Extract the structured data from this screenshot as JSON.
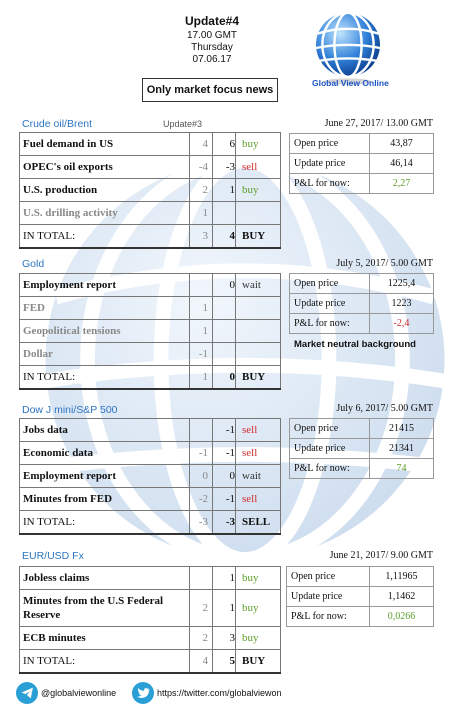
{
  "header": {
    "update": "Update#4",
    "time": "17.00 GMT",
    "day": "Thursday",
    "date": "07.06.17",
    "focus": "Only market focus news"
  },
  "logo": {
    "text": "Global View Online"
  },
  "sections": [
    {
      "title": "Crude oil/Brent",
      "subtitle": "Update#3",
      "rows": [
        {
          "label": "Fuel demand in US",
          "prev": "4",
          "curr": "6",
          "action": "buy"
        },
        {
          "label": "OPEC's oil exports",
          "prev": "-4",
          "curr": "-3",
          "action": "sell"
        },
        {
          "label": "U.S. production",
          "prev": "2",
          "curr": "1",
          "action": "buy"
        },
        {
          "label": "U.S. drilling activity",
          "prev": "1",
          "curr": "",
          "action": ""
        }
      ],
      "total": {
        "label": "IN TOTAL:",
        "prev": "3",
        "curr": "4",
        "action": "BUY"
      },
      "pnl": {
        "date": "June 27, 2017/ 13.00 GMT",
        "open_label": "Open price",
        "open": "43,87",
        "update_label": "Update price",
        "update": "46,14",
        "pl_label": "P&L for now:",
        "pl": "2,27",
        "pl_color": "#5c9d2a"
      }
    },
    {
      "title": "Gold",
      "subtitle": "",
      "rows": [
        {
          "label": "Employment report",
          "prev": "",
          "curr": "0",
          "action": "wait"
        },
        {
          "label": "FED",
          "prev": "1",
          "curr": "",
          "action": ""
        },
        {
          "label": "Geopolitical tensions",
          "prev": "1",
          "curr": "",
          "action": ""
        },
        {
          "label": "Dollar",
          "prev": "-1",
          "curr": "",
          "action": ""
        }
      ],
      "total": {
        "label": "IN TOTAL:",
        "prev": "1",
        "curr": "0",
        "action": "BUY"
      },
      "pnl": {
        "date": "July 5, 2017/ 5.00 GMT",
        "open_label": "Open price",
        "open": "1225,4",
        "update_label": "Update price",
        "update": "1223",
        "pl_label": "P&L for now:",
        "pl": "-2,4",
        "pl_color": "#d12b2b"
      },
      "note": "Market neutral background"
    },
    {
      "title": "Dow J mini/S&P 500",
      "subtitle": "",
      "rows": [
        {
          "label": "Jobs data",
          "prev": "",
          "curr": "-1",
          "action": "sell"
        },
        {
          "label": "Economic data",
          "prev": "-1",
          "curr": "-1",
          "action": "sell"
        },
        {
          "label": "Employment report",
          "prev": "0",
          "curr": "0",
          "action": "wait"
        },
        {
          "label": "Minutes from FED",
          "prev": "-2",
          "curr": "-1",
          "action": "sell"
        }
      ],
      "total": {
        "label": "IN TOTAL:",
        "prev": "-3",
        "curr": "-3",
        "action": "SELL"
      },
      "pnl": {
        "date": "July 6, 2017/ 5.00 GMT",
        "open_label": "Open price",
        "open": "21415",
        "update_label": "Update price",
        "update": "21341",
        "pl_label": "P&L for now:",
        "pl": "74",
        "pl_color": "#5c9d2a"
      }
    },
    {
      "title": "EUR/USD Fx",
      "subtitle": "",
      "rows": [
        {
          "label": "Jobless claims",
          "prev": "",
          "curr": "1",
          "action": "buy"
        },
        {
          "label": "Minutes from the U.S Federal Reserve",
          "prev": "2",
          "curr": "1",
          "action": "buy"
        },
        {
          "label": "ECB minutes",
          "prev": "2",
          "curr": "3",
          "action": "buy"
        }
      ],
      "total": {
        "label": "IN TOTAL:",
        "prev": "4",
        "curr": "5",
        "action": "BUY"
      },
      "pnl": {
        "date": "June 21, 2017/ 9.00 GMT",
        "open_label": "Open price",
        "open": "1,11965",
        "update_label": "Update price",
        "update": "1,1462",
        "pl_label": "P&L for now:",
        "pl": "0,0266",
        "pl_color": "#5c9d2a"
      }
    }
  ],
  "footer": {
    "telegram_icon": "telegram-icon",
    "telegram": "@globalviewonline",
    "twitter_icon": "twitter-icon",
    "twitter": "https://twitter.com/globalviewon"
  }
}
